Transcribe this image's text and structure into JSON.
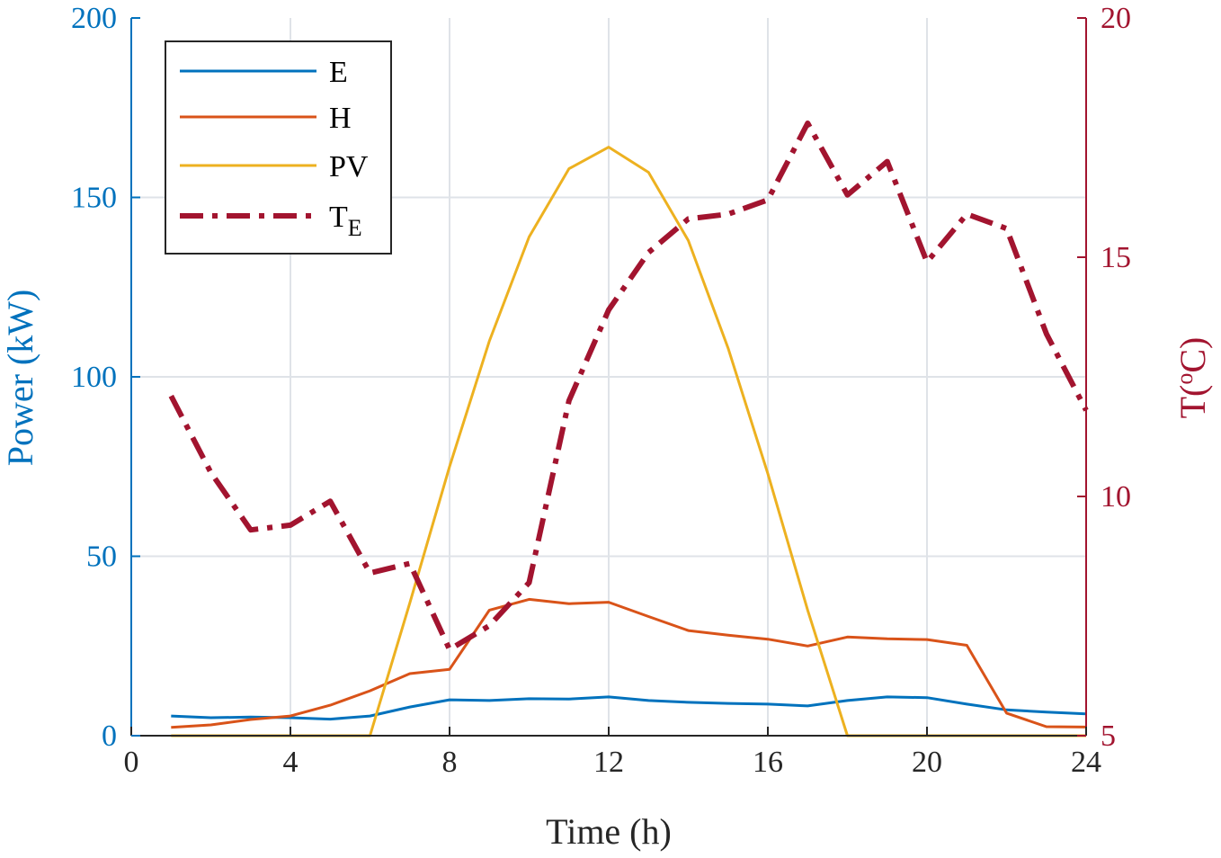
{
  "chart_data": {
    "type": "line",
    "x": [
      1,
      2,
      3,
      4,
      5,
      6,
      7,
      8,
      9,
      10,
      11,
      12,
      13,
      14,
      15,
      16,
      17,
      18,
      19,
      20,
      21,
      22,
      23,
      24
    ],
    "xlabel": "Time (h)",
    "xlim": [
      0,
      24
    ],
    "xticks": [
      "0",
      "4",
      "8",
      "12",
      "16",
      "20",
      "24"
    ],
    "ylabel": "Power (kW)",
    "ylim": [
      0,
      200
    ],
    "yticks": [
      "0",
      "50",
      "100",
      "150",
      "200"
    ],
    "y2label_main": "T(",
    "y2label_sup": "o",
    "y2label_end": "C)",
    "y2lim": [
      5,
      20
    ],
    "y2ticks": [
      "5",
      "10",
      "15",
      "20"
    ],
    "grid": true,
    "legend_position": "top-left",
    "series": [
      {
        "name": "E",
        "axis": "left",
        "color": "#0072BD",
        "style": "solid",
        "values": [
          5.5,
          5,
          5.2,
          5,
          4.6,
          5.5,
          8,
          10,
          9.8,
          10.3,
          10.2,
          10.8,
          9.8,
          9.3,
          9,
          8.8,
          8.3,
          9.8,
          10.8,
          10.6,
          8.8,
          7.2,
          6.6,
          6.1
        ]
      },
      {
        "name": "H",
        "axis": "left",
        "color": "#D95319",
        "style": "solid",
        "values": [
          2.3,
          3,
          4.5,
          5.5,
          8.5,
          12.5,
          17.3,
          18.5,
          35,
          38,
          36.8,
          37.2,
          33.2,
          29.3,
          28,
          26.9,
          25,
          27.5,
          27,
          26.8,
          25.2,
          6.3,
          2.5,
          2.4
        ]
      },
      {
        "name": "PV",
        "axis": "left",
        "color": "#EDB120",
        "style": "solid",
        "values": [
          0,
          0,
          0,
          0,
          0,
          0,
          37,
          75,
          110,
          139,
          158,
          164,
          157,
          138,
          108,
          73,
          35,
          0,
          0,
          0,
          0,
          0,
          0,
          0
        ]
      },
      {
        "name": "T",
        "sub": "E",
        "axis": "right",
        "color": "#A2142F",
        "style": "dashdot",
        "values": [
          12.1,
          10.5,
          9.3,
          9.4,
          9.9,
          8.4,
          8.6,
          6.8,
          7.3,
          8.2,
          12,
          13.9,
          15.1,
          15.8,
          15.9,
          16.2,
          17.8,
          16.3,
          17,
          14.9,
          15.9,
          15.6,
          13.4,
          11.8
        ]
      }
    ]
  }
}
